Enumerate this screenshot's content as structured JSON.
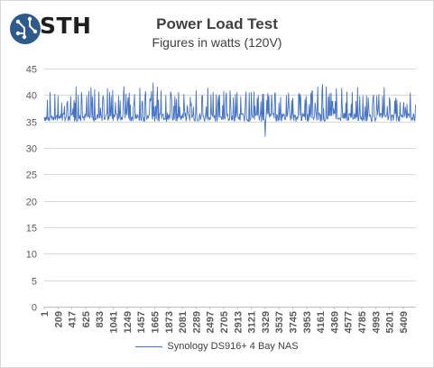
{
  "logo": {
    "text": "STH",
    "icon": "sth-circuit-logo-icon",
    "color": "#2e5a8c"
  },
  "chart_data": {
    "type": "line",
    "title": "Power Load Test",
    "subtitle": "Figures in watts (120V)",
    "xlabel": "",
    "ylabel": "",
    "ylim": [
      0,
      45
    ],
    "y_ticks": [
      0,
      5,
      10,
      15,
      20,
      25,
      30,
      35,
      40,
      45
    ],
    "x_range": [
      1,
      5600
    ],
    "x_ticks": [
      1,
      209,
      417,
      625,
      833,
      1041,
      1249,
      1457,
      1665,
      1873,
      2081,
      2289,
      2497,
      2705,
      2913,
      3121,
      3329,
      3537,
      3745,
      3953,
      4161,
      4369,
      4577,
      4785,
      4993,
      5201,
      5409
    ],
    "grid": true,
    "legend_position": "bottom",
    "colors": {
      "series": "#4472c4",
      "grid": "#d9d9d9",
      "text": "#595959"
    },
    "series": [
      {
        "name": "Synology DS916+ 4 Bay NAS",
        "baseline": 35.8,
        "x": [
          90,
          160,
          210,
          260,
          300,
          350,
          400,
          480,
          560,
          640,
          700,
          760,
          820,
          880,
          950,
          1030,
          1120,
          1200,
          1280,
          1360,
          1440,
          1520,
          1590,
          1640,
          1700,
          1760,
          1830,
          1900,
          1990,
          2100,
          2200,
          2290,
          2380,
          2460,
          2540,
          2620,
          2700,
          2800,
          2880,
          2960,
          3040,
          3120,
          3210,
          3290,
          3330,
          3380,
          3470,
          3560,
          3650,
          3740,
          3840,
          3930,
          4030,
          4120,
          4190,
          4250,
          4320,
          4400,
          4480,
          4560,
          4640,
          4720,
          4800,
          4880,
          4960,
          5040,
          5120,
          5200,
          5280,
          5360,
          5440,
          5520
        ],
        "values": [
          40.5,
          40.2,
          39.8,
          38.5,
          37.9,
          38.8,
          39.7,
          41.5,
          40.5,
          39.8,
          41.4,
          41.0,
          40.6,
          39.5,
          41.2,
          40.9,
          39.8,
          41.6,
          40.4,
          40.1,
          41.3,
          40.0,
          39.4,
          42.3,
          41.5,
          40.8,
          39.9,
          40.6,
          39.2,
          40.1,
          39.6,
          40.8,
          39.9,
          41.3,
          40.5,
          39.8,
          40.7,
          40.8,
          40.1,
          39.7,
          40.6,
          40.5,
          39.4,
          40.2,
          32.2,
          39.9,
          40.2,
          39.6,
          39.9,
          39.4,
          40.3,
          39.1,
          40.8,
          41.5,
          42.0,
          41.6,
          40.4,
          41.2,
          41.3,
          40.6,
          40.5,
          41.4,
          39.8,
          39.5,
          40.0,
          40.1,
          41.4,
          39.5,
          38.9,
          38.6,
          37.7,
          37.2
        ]
      }
    ]
  }
}
